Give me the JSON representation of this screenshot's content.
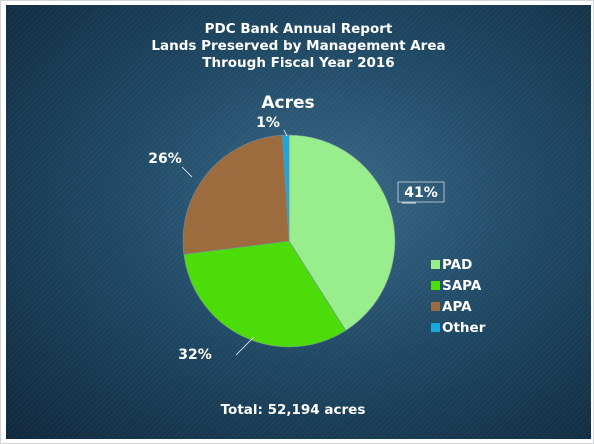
{
  "chart_data": {
    "type": "pie",
    "title_lines": [
      "PDC Bank Annual Report",
      "Lands Preserved by Management Area",
      "Through Fiscal Year 2016"
    ],
    "subtitle": "Acres",
    "footer": "Total: 52,194 acres",
    "slices": [
      {
        "name": "PAD",
        "value": 41,
        "label": "41%",
        "color": "#98ee8c"
      },
      {
        "name": "SAPA",
        "value": 32,
        "label": "32%",
        "color": "#4cdc0a"
      },
      {
        "name": "APA",
        "value": 26,
        "label": "26%",
        "color": "#9c6b3e"
      },
      {
        "name": "Other",
        "value": 1,
        "label": "1%",
        "color": "#1aa7dd"
      }
    ],
    "legend_position": "right"
  }
}
